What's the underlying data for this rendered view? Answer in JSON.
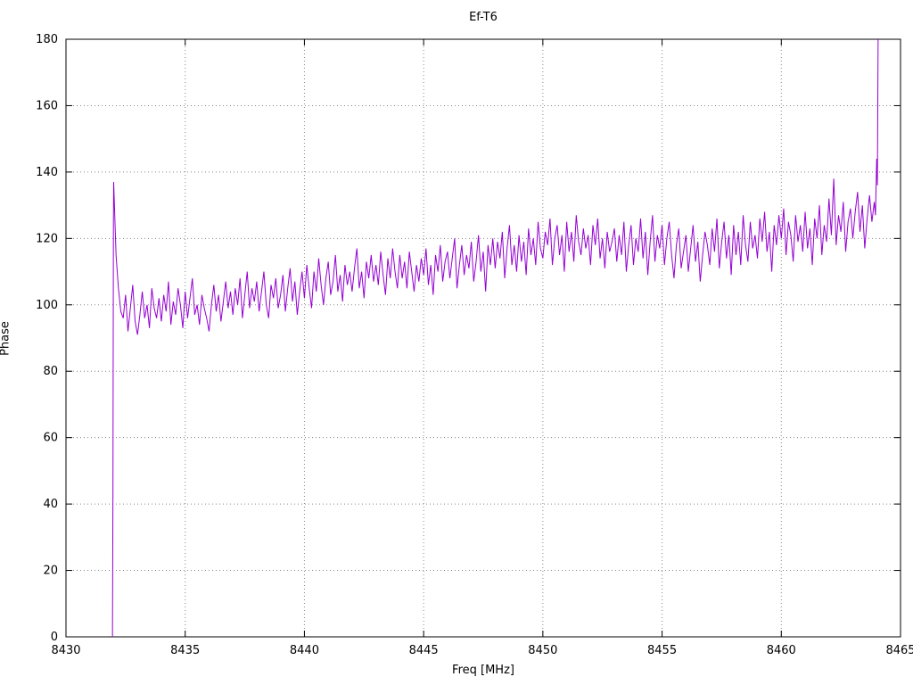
{
  "chart": {
    "title": "Ef-T6",
    "xlabel": "Freq [MHz]",
    "ylabel": "Phase"
  },
  "chart_data": {
    "type": "line",
    "title": "Ef-T6",
    "xlabel": "Freq [MHz]",
    "ylabel": "Phase",
    "xlim": [
      8430,
      8465
    ],
    "ylim": [
      0,
      180
    ],
    "x_ticks": [
      8430,
      8435,
      8440,
      8445,
      8450,
      8455,
      8460,
      8465
    ],
    "y_ticks": [
      0,
      20,
      40,
      60,
      80,
      100,
      120,
      140,
      160,
      180
    ],
    "grid": true,
    "grid_style": "dotted",
    "legend": "none",
    "line_color": "#9400d3",
    "background": "#ffffff",
    "series": [
      {
        "name": "Ef-T6",
        "lead_in": [
          [
            8431.95,
            0
          ],
          [
            8431.97,
            44
          ],
          [
            8431.99,
            125
          ]
        ],
        "x_start": 8432.0,
        "x_step": 0.1,
        "values": [
          137,
          115,
          105,
          98,
          96,
          103,
          92,
          99,
          106,
          95,
          91,
          97,
          104,
          96,
          100,
          93,
          105,
          99,
          96,
          102,
          95,
          103,
          98,
          107,
          94,
          101,
          97,
          105,
          100,
          93,
          104,
          96,
          102,
          108,
          97,
          100,
          94,
          103,
          99,
          96,
          92,
          100,
          106,
          98,
          103,
          95,
          101,
          107,
          99,
          104,
          97,
          105,
          100,
          108,
          96,
          103,
          110,
          99,
          105,
          101,
          107,
          98,
          104,
          110,
          100,
          96,
          106,
          102,
          108,
          99,
          103,
          109,
          98,
          105,
          111,
          101,
          107,
          97,
          104,
          110,
          102,
          112,
          105,
          99,
          110,
          104,
          114,
          106,
          100,
          108,
          113,
          103,
          107,
          115,
          104,
          109,
          101,
          112,
          106,
          110,
          104,
          111,
          117,
          105,
          110,
          102,
          113,
          108,
          115,
          107,
          112,
          106,
          116,
          109,
          103,
          114,
          108,
          117,
          110,
          105,
          115,
          108,
          113,
          105,
          116,
          110,
          104,
          112,
          107,
          114,
          109,
          117,
          106,
          112,
          103,
          115,
          110,
          118,
          107,
          113,
          116,
          108,
          114,
          120,
          105,
          112,
          118,
          109,
          115,
          111,
          119,
          107,
          113,
          121,
          110,
          116,
          104,
          118,
          112,
          120,
          111,
          119,
          114,
          122,
          108,
          117,
          124,
          112,
          118,
          110,
          121,
          113,
          119,
          109,
          123,
          115,
          120,
          112,
          125,
          117,
          114,
          122,
          118,
          126,
          112,
          120,
          124,
          115,
          121,
          110,
          125,
          116,
          122,
          113,
          127,
          119,
          115,
          123,
          117,
          121,
          112,
          124,
          118,
          126,
          114,
          120,
          111,
          122,
          116,
          119,
          123,
          113,
          121,
          115,
          125,
          110,
          118,
          124,
          112,
          120,
          116,
          126,
          114,
          122,
          109,
          119,
          127,
          113,
          121,
          117,
          124,
          112,
          120,
          125,
          115,
          108,
          118,
          123,
          111,
          116,
          121,
          110,
          117,
          124,
          113,
          119,
          107,
          115,
          122,
          118,
          112,
          123,
          116,
          126,
          111,
          119,
          125,
          114,
          121,
          109,
          124,
          115,
          122,
          112,
          127,
          118,
          113,
          125,
          117,
          121,
          114,
          126,
          119,
          128,
          116,
          122,
          110,
          124,
          118,
          127,
          120,
          129,
          115,
          125,
          121,
          113,
          127,
          119,
          124,
          116,
          128,
          117,
          123,
          112,
          126,
          120,
          130,
          115,
          124,
          119,
          132,
          121,
          138,
          118,
          127,
          122,
          131,
          116,
          125,
          129,
          120,
          128,
          134,
          122,
          130,
          117,
          126,
          133,
          125,
          131
        ],
        "tail": [
          [
            8463.95,
            127
          ],
          [
            8464.0,
            144
          ],
          [
            8464.03,
            136
          ],
          [
            8464.06,
            180
          ]
        ]
      }
    ]
  }
}
